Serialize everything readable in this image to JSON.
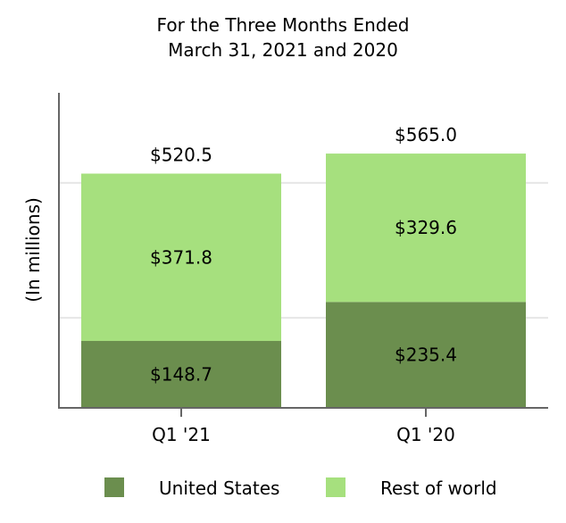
{
  "chart_data": {
    "type": "bar",
    "stacked": true,
    "title": "For the Three Months Ended",
    "subtitle": "March 31, 2021 and 2020",
    "ylabel": "(In millions)",
    "xlabel": "",
    "categories": [
      "Q1 '21",
      "Q1 '20"
    ],
    "series": [
      {
        "name": "United States",
        "values": [
          148.7,
          235.4
        ],
        "labels": [
          "$148.7",
          "$235.4"
        ],
        "color": "#6b8e4e"
      },
      {
        "name": "Rest of world",
        "values": [
          371.8,
          329.6
        ],
        "labels": [
          "$371.8",
          "$329.6"
        ],
        "color": "#a6e07e"
      }
    ],
    "totals": [
      520.5,
      565.0
    ],
    "total_labels": [
      "$520.5",
      "$565.0"
    ],
    "ylim": [
      0,
      700
    ],
    "grid": true,
    "y_ticks_labeled": false,
    "legend_position": "bottom",
    "colors": {
      "axis": "#666666",
      "grid": "#e6e6e6"
    }
  }
}
